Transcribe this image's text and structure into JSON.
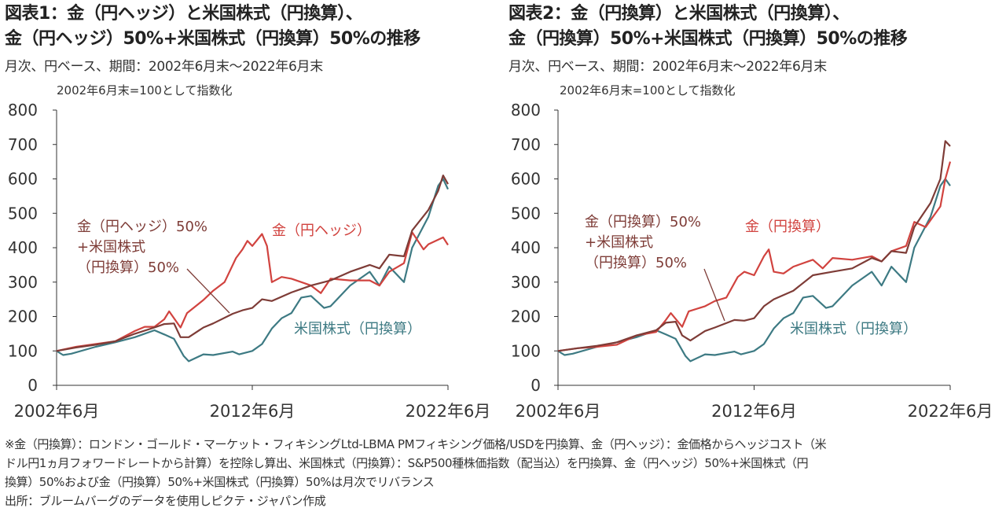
{
  "chart_data": [
    {
      "type": "line",
      "title_line1": "図表1：金（円ヘッジ）と米国株式（円換算）、",
      "title_line2": "金（円ヘッジ）50%+米国株式（円換算）50%の推移",
      "subtitle": "月次、円ベース、期間：2002年6月末～2022年6月末",
      "ylabel": "2002年6月末=100として指数化",
      "ylim": [
        0,
        800
      ],
      "yticks": [
        "0",
        "100",
        "200",
        "300",
        "400",
        "500",
        "600",
        "700",
        "800"
      ],
      "xlim": [
        "2002-06",
        "2022-06"
      ],
      "xticks": [
        {
          "x": "2002-06",
          "label": "2002年6月"
        },
        {
          "x": "2012-06",
          "label": "2012年6月"
        },
        {
          "x": "2022-06",
          "label": "2022年6月"
        }
      ],
      "annotations": {
        "mix": [
          "金（円ヘッジ）50%",
          "+米国株式",
          "（円換算）50%"
        ],
        "gold": "金（円ヘッジ）",
        "stock": "米国株式（円換算）"
      },
      "series": [
        {
          "name": "金（円ヘッジ）",
          "color": "#d1433f",
          "points": [
            [
              "2002-06",
              100
            ],
            [
              "2003-06",
              112
            ],
            [
              "2004-06",
              120
            ],
            [
              "2005-06",
              128
            ],
            [
              "2006-06",
              158
            ],
            [
              "2006-12",
              170
            ],
            [
              "2007-06",
              170
            ],
            [
              "2007-12",
              192
            ],
            [
              "2008-03",
              215
            ],
            [
              "2008-10",
              168
            ],
            [
              "2009-02",
              210
            ],
            [
              "2009-12",
              248
            ],
            [
              "2010-06",
              275
            ],
            [
              "2011-01",
              300
            ],
            [
              "2011-08",
              370
            ],
            [
              "2011-12",
              395
            ],
            [
              "2012-03",
              420
            ],
            [
              "2012-06",
              405
            ],
            [
              "2012-12",
              440
            ],
            [
              "2013-03",
              405
            ],
            [
              "2013-06",
              300
            ],
            [
              "2013-12",
              315
            ],
            [
              "2014-06",
              310
            ],
            [
              "2015-06",
              290
            ],
            [
              "2015-12",
              268
            ],
            [
              "2016-06",
              310
            ],
            [
              "2017-06",
              305
            ],
            [
              "2018-06",
              305
            ],
            [
              "2018-12",
              290
            ],
            [
              "2019-06",
              330
            ],
            [
              "2020-03",
              355
            ],
            [
              "2020-08",
              445
            ],
            [
              "2021-03",
              395
            ],
            [
              "2021-06",
              410
            ],
            [
              "2022-03",
              430
            ],
            [
              "2022-06",
              408
            ]
          ]
        },
        {
          "name": "米国株式（円換算）",
          "color": "#3d7a83",
          "points": [
            [
              "2002-06",
              100
            ],
            [
              "2002-10",
              88
            ],
            [
              "2003-03",
              92
            ],
            [
              "2004-06",
              112
            ],
            [
              "2005-06",
              125
            ],
            [
              "2006-06",
              140
            ],
            [
              "2007-06",
              160
            ],
            [
              "2007-12",
              148
            ],
            [
              "2008-06",
              135
            ],
            [
              "2008-12",
              85
            ],
            [
              "2009-03",
              70
            ],
            [
              "2009-12",
              90
            ],
            [
              "2010-06",
              88
            ],
            [
              "2011-06",
              98
            ],
            [
              "2011-10",
              90
            ],
            [
              "2012-06",
              100
            ],
            [
              "2012-12",
              120
            ],
            [
              "2013-06",
              165
            ],
            [
              "2013-12",
              195
            ],
            [
              "2014-06",
              210
            ],
            [
              "2014-12",
              255
            ],
            [
              "2015-06",
              260
            ],
            [
              "2016-02",
              225
            ],
            [
              "2016-06",
              230
            ],
            [
              "2017-06",
              290
            ],
            [
              "2018-06",
              330
            ],
            [
              "2018-12",
              290
            ],
            [
              "2019-06",
              345
            ],
            [
              "2020-03",
              300
            ],
            [
              "2020-08",
              400
            ],
            [
              "2021-06",
              490
            ],
            [
              "2021-12",
              580
            ],
            [
              "2022-03",
              600
            ],
            [
              "2022-06",
              570
            ]
          ]
        },
        {
          "name": "金（円ヘッジ）50%+米国株式（円換算）50%",
          "color": "#7e3c37",
          "points": [
            [
              "2002-06",
              100
            ],
            [
              "2003-06",
              110
            ],
            [
              "2004-06",
              118
            ],
            [
              "2005-06",
              128
            ],
            [
              "2006-06",
              150
            ],
            [
              "2007-06",
              168
            ],
            [
              "2007-12",
              178
            ],
            [
              "2008-06",
              180
            ],
            [
              "2008-10",
              140
            ],
            [
              "2009-03",
              140
            ],
            [
              "2009-12",
              168
            ],
            [
              "2010-06",
              180
            ],
            [
              "2011-06",
              208
            ],
            [
              "2011-12",
              218
            ],
            [
              "2012-06",
              225
            ],
            [
              "2012-12",
              250
            ],
            [
              "2013-06",
              245
            ],
            [
              "2014-06",
              270
            ],
            [
              "2015-06",
              290
            ],
            [
              "2016-06",
              305
            ],
            [
              "2017-06",
              330
            ],
            [
              "2018-06",
              350
            ],
            [
              "2018-12",
              340
            ],
            [
              "2019-06",
              380
            ],
            [
              "2020-03",
              375
            ],
            [
              "2020-08",
              450
            ],
            [
              "2021-06",
              510
            ],
            [
              "2021-12",
              565
            ],
            [
              "2022-03",
              610
            ],
            [
              "2022-06",
              585
            ]
          ]
        }
      ]
    },
    {
      "type": "line",
      "title_line1": "図表2：金（円換算）と米国株式（円換算）、",
      "title_line2": "金（円換算）50%+米国株式（円換算）50%の推移",
      "subtitle": "月次、円ベース、期間：2002年6月末～2022年6月末",
      "ylabel": "2002年6月末=100として指数化",
      "ylim": [
        0,
        800
      ],
      "yticks": [
        "0",
        "100",
        "200",
        "300",
        "400",
        "500",
        "600",
        "700",
        "800"
      ],
      "xlim": [
        "2002-06",
        "2022-06"
      ],
      "xticks": [
        {
          "x": "2002-06",
          "label": "2002年6月"
        },
        {
          "x": "2012-06",
          "label": "2012年6月"
        },
        {
          "x": "2022-06",
          "label": "2022年6月"
        }
      ],
      "annotations": {
        "mix": [
          "金（円換算）50%",
          "+米国株式",
          "（円換算）50%"
        ],
        "gold": "金（円換算）",
        "stock": "米国株式（円換算）"
      },
      "series": [
        {
          "name": "金（円換算）",
          "color": "#d1433f",
          "points": [
            [
              "2002-06",
              100
            ],
            [
              "2003-06",
              108
            ],
            [
              "2004-06",
              112
            ],
            [
              "2005-06",
              118
            ],
            [
              "2006-06",
              145
            ],
            [
              "2006-12",
              150
            ],
            [
              "2007-06",
              155
            ],
            [
              "2007-12",
              190
            ],
            [
              "2008-03",
              210
            ],
            [
              "2008-10",
              170
            ],
            [
              "2009-02",
              215
            ],
            [
              "2009-12",
              230
            ],
            [
              "2010-06",
              245
            ],
            [
              "2011-01",
              255
            ],
            [
              "2011-08",
              315
            ],
            [
              "2011-12",
              330
            ],
            [
              "2012-06",
              320
            ],
            [
              "2012-12",
              375
            ],
            [
              "2013-03",
              395
            ],
            [
              "2013-06",
              330
            ],
            [
              "2013-12",
              325
            ],
            [
              "2014-06",
              345
            ],
            [
              "2015-06",
              365
            ],
            [
              "2015-12",
              340
            ],
            [
              "2016-06",
              370
            ],
            [
              "2017-06",
              365
            ],
            [
              "2018-06",
              375
            ],
            [
              "2018-12",
              360
            ],
            [
              "2019-06",
              390
            ],
            [
              "2020-03",
              405
            ],
            [
              "2020-08",
              475
            ],
            [
              "2021-03",
              460
            ],
            [
              "2021-06",
              480
            ],
            [
              "2021-12",
              520
            ],
            [
              "2022-03",
              600
            ],
            [
              "2022-06",
              650
            ]
          ]
        },
        {
          "name": "米国株式（円換算）",
          "color": "#3d7a83",
          "points": [
            [
              "2002-06",
              100
            ],
            [
              "2002-10",
              88
            ],
            [
              "2003-03",
              92
            ],
            [
              "2004-06",
              112
            ],
            [
              "2005-06",
              125
            ],
            [
              "2006-06",
              140
            ],
            [
              "2007-06",
              160
            ],
            [
              "2007-12",
              148
            ],
            [
              "2008-06",
              135
            ],
            [
              "2008-12",
              85
            ],
            [
              "2009-03",
              70
            ],
            [
              "2009-12",
              90
            ],
            [
              "2010-06",
              88
            ],
            [
              "2011-06",
              98
            ],
            [
              "2011-10",
              90
            ],
            [
              "2012-06",
              100
            ],
            [
              "2012-12",
              120
            ],
            [
              "2013-06",
              165
            ],
            [
              "2013-12",
              195
            ],
            [
              "2014-06",
              210
            ],
            [
              "2014-12",
              255
            ],
            [
              "2015-06",
              260
            ],
            [
              "2016-02",
              225
            ],
            [
              "2016-06",
              230
            ],
            [
              "2017-06",
              290
            ],
            [
              "2018-06",
              330
            ],
            [
              "2018-12",
              290
            ],
            [
              "2019-06",
              345
            ],
            [
              "2020-03",
              300
            ],
            [
              "2020-08",
              400
            ],
            [
              "2021-06",
              490
            ],
            [
              "2021-12",
              580
            ],
            [
              "2022-03",
              600
            ],
            [
              "2022-06",
              580
            ]
          ]
        },
        {
          "name": "金（円換算）50%+米国株式（円換算）50%",
          "color": "#7e3c37",
          "points": [
            [
              "2002-06",
              100
            ],
            [
              "2003-06",
              108
            ],
            [
              "2004-06",
              115
            ],
            [
              "2005-06",
              125
            ],
            [
              "2006-06",
              145
            ],
            [
              "2007-06",
              160
            ],
            [
              "2007-12",
              182
            ],
            [
              "2008-06",
              185
            ],
            [
              "2008-10",
              145
            ],
            [
              "2009-03",
              130
            ],
            [
              "2009-12",
              158
            ],
            [
              "2010-06",
              168
            ],
            [
              "2011-06",
              190
            ],
            [
              "2011-12",
              188
            ],
            [
              "2012-06",
              195
            ],
            [
              "2012-12",
              230
            ],
            [
              "2013-06",
              250
            ],
            [
              "2014-06",
              275
            ],
            [
              "2015-06",
              320
            ],
            [
              "2016-06",
              330
            ],
            [
              "2017-06",
              340
            ],
            [
              "2018-06",
              370
            ],
            [
              "2018-12",
              360
            ],
            [
              "2019-06",
              390
            ],
            [
              "2020-03",
              385
            ],
            [
              "2020-08",
              460
            ],
            [
              "2021-06",
              530
            ],
            [
              "2021-12",
              600
            ],
            [
              "2022-03",
              710
            ],
            [
              "2022-06",
              695
            ]
          ]
        }
      ]
    }
  ],
  "notes": [
    "※金（円換算）：ロンドン・ゴールド・マーケット・フィキシングLtd-LBMA PMフィキシング価格/USDを円換算、金（円ヘッジ）：金価格からヘッジコスト（米",
    "ドル円1ヵ月フォワードレートから計算）を控除し算出、米国株式（円換算）：S&P500種株価指数（配当込）を円換算、金（円ヘッジ）50%+米国株式（円",
    "換算）50%および金（円換算）50%+米国株式（円換算）50%は月次でリバランス",
    "出所：ブルームバーグのデータを使用しピクテ・ジャパン作成"
  ]
}
